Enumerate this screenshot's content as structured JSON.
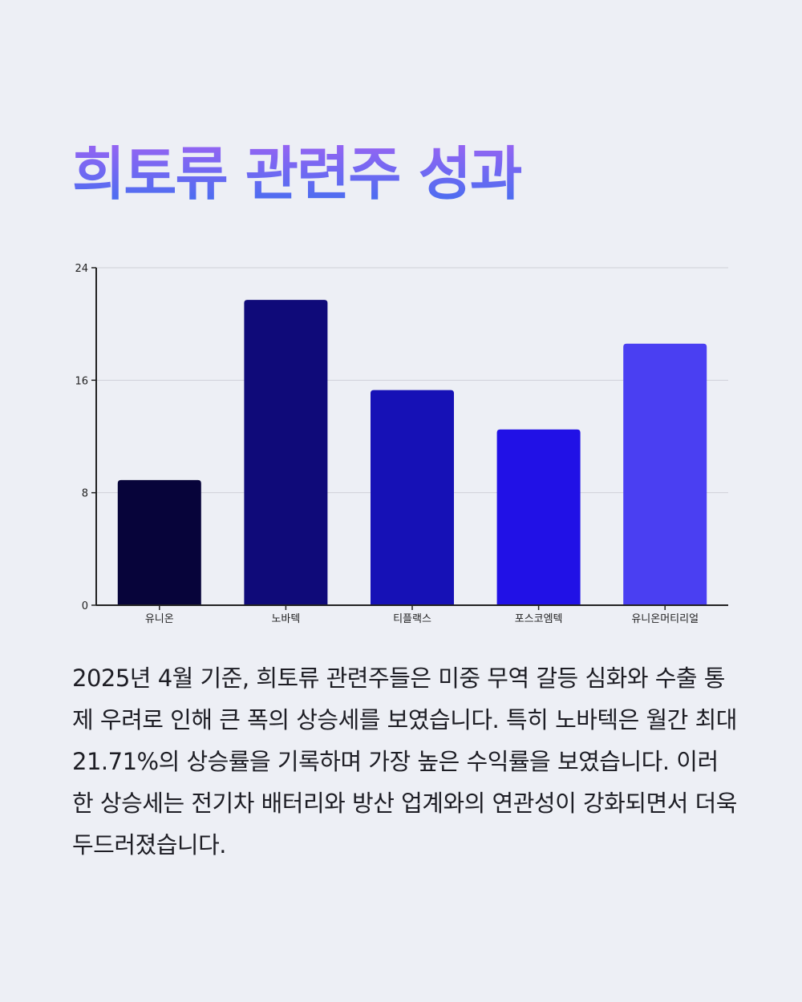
{
  "title": "희토류 관련주 성과",
  "colors": {
    "background": "#edeff5",
    "title_gradient_top": "#9d63f3",
    "title_gradient_bottom": "#3f6ff0",
    "bar_colors": [
      "#07043a",
      "#0f0a79",
      "#1611b6",
      "#2111e6",
      "#4a3ff2"
    ],
    "gridline": "#cfd1d8",
    "axis": "#222222"
  },
  "chart_data": {
    "type": "bar",
    "categories": [
      "유니온",
      "노바텍",
      "티플랙스",
      "포스코엠텍",
      "유니온머티리얼"
    ],
    "values": [
      8.9,
      21.71,
      15.3,
      12.5,
      18.6
    ],
    "title": "",
    "xlabel": "",
    "ylabel": "",
    "ylim": [
      0,
      24
    ],
    "yticks": [
      0,
      8,
      16,
      24
    ],
    "grid": true,
    "legend": "none"
  },
  "description": "2025년 4월 기준, 희토류 관련주들은 미중 무역 갈등 심화와 수출 통제 우려로 인해 큰 폭의 상승세를 보였습니다. 특히 노바텍은 월간 최대 21.71%의 상승률을 기록하며 가장 높은 수익률을 보였습니다. 이러한 상승세는 전기차 배터리와 방산 업계와의 연관성이 강화되면서 더욱 두드러졌습니다."
}
